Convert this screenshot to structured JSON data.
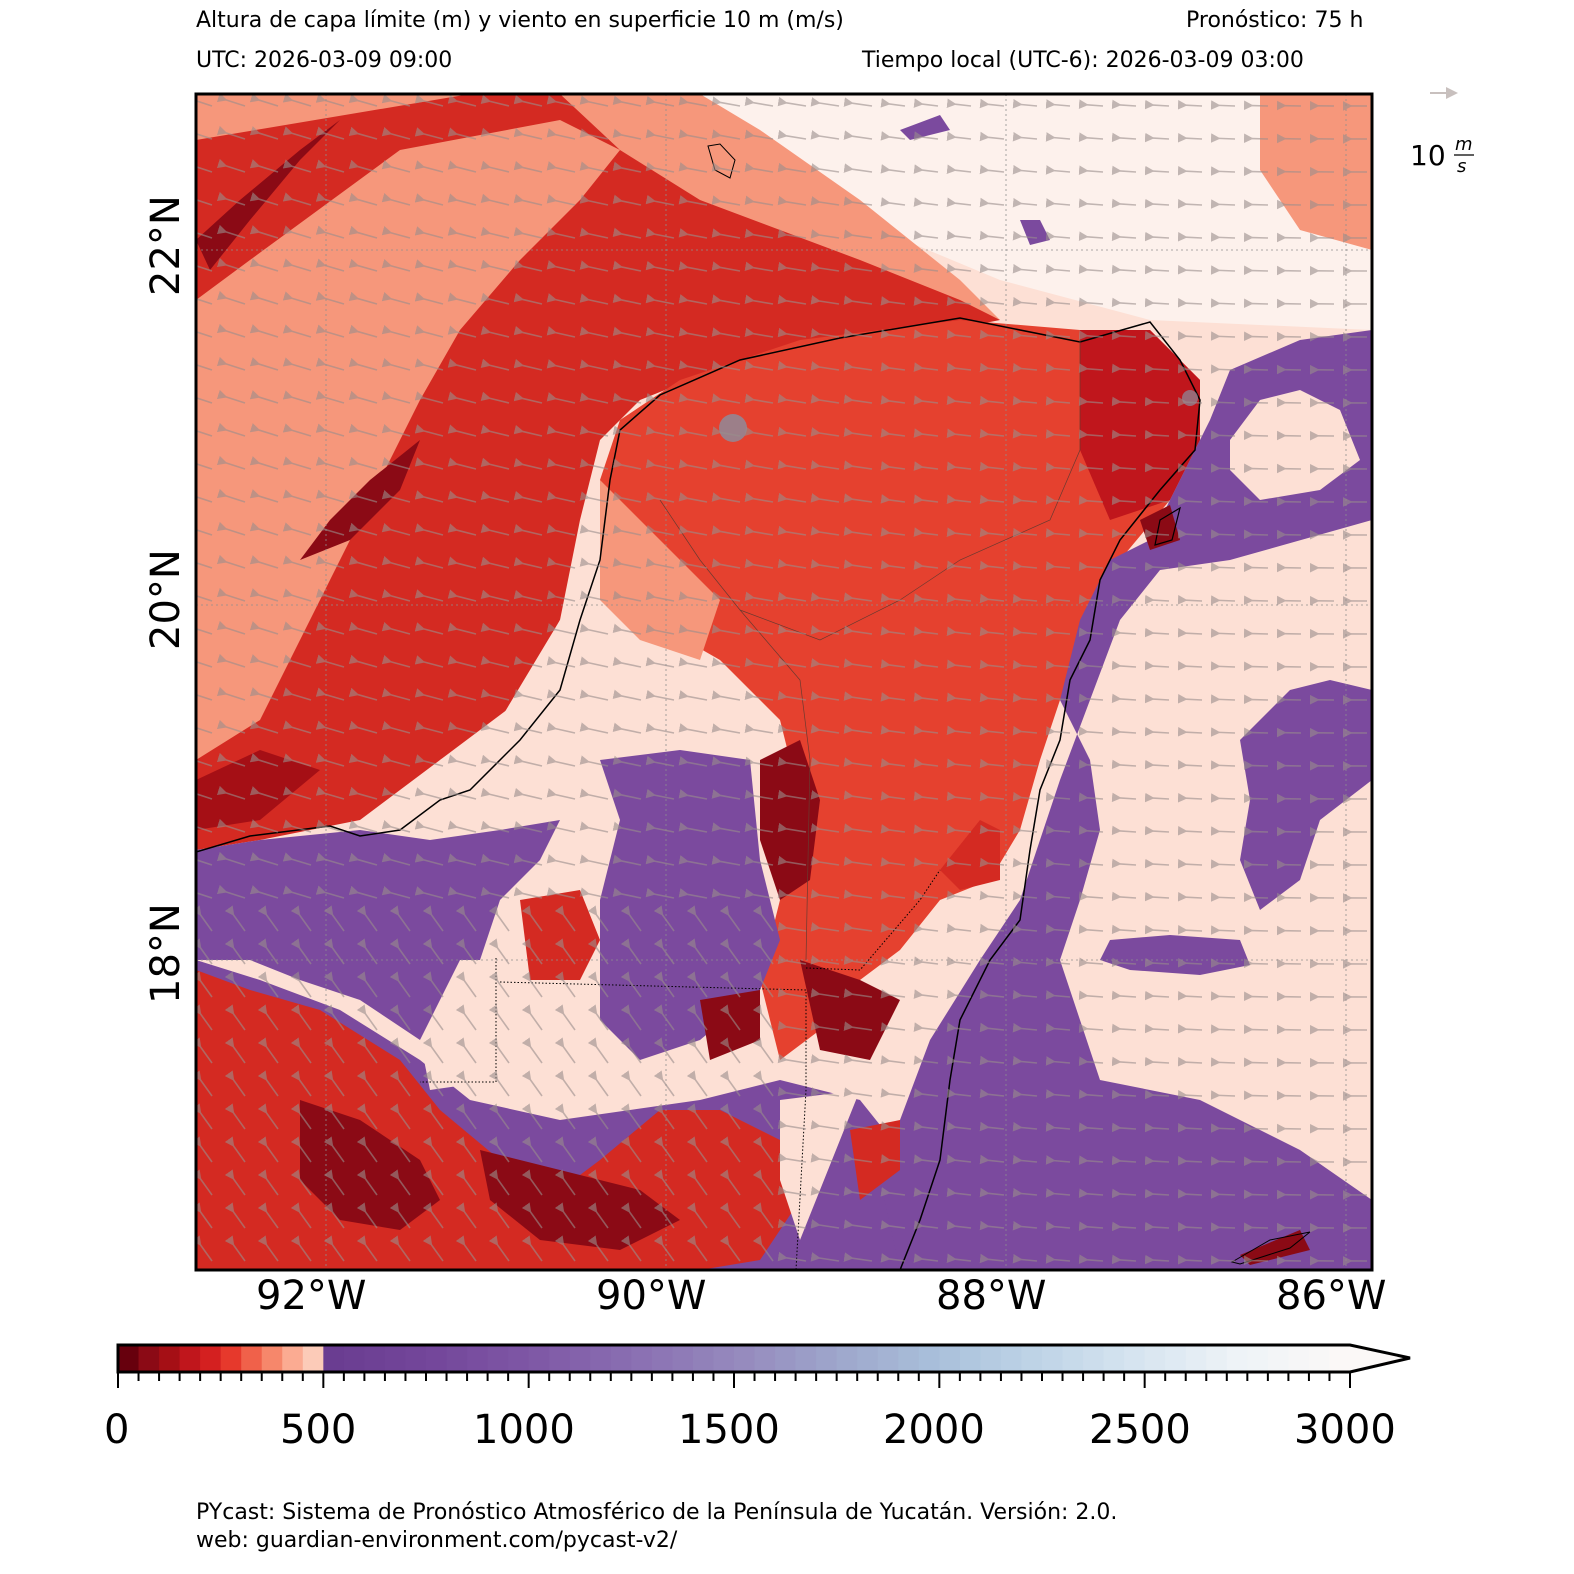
{
  "header": {
    "title": "Altura de capa límite (m) y viento en superficie 10 m (m/s)",
    "forecast": "Pronóstico: 75 h",
    "utc": "UTC:  2026-03-09 09:00",
    "local_time": "Tiempo local (UTC-6): 2026-03-09 03:00"
  },
  "map": {
    "lon_labels": [
      "92°W",
      "90°W",
      "88°W",
      "86°W"
    ],
    "lat_labels": [
      "22°N",
      "20°N",
      "18°N"
    ],
    "wind_key": {
      "value": "10",
      "unit_num": "m",
      "unit_den": "s"
    }
  },
  "colorbar": {
    "tick_labels": [
      "0",
      "500",
      "1000",
      "1500",
      "2000",
      "2500",
      "3000"
    ],
    "min": 0,
    "max": 3000,
    "extend": "max",
    "low_colors": [
      "#67000d",
      "#8b0a15",
      "#a50f15",
      "#c0161c",
      "#d42020",
      "#e6392c",
      "#f0614a",
      "#f6876b",
      "#fbab92",
      "#fccbb8",
      "#fee8df"
    ],
    "high_colors": [
      "#6a3d91",
      "#74479b",
      "#7f58a6",
      "#8a6fb2",
      "#9589bd",
      "#9ea6cb",
      "#a9c0db",
      "#bfd4e7",
      "#d7e5f0",
      "#eef3f7",
      "#fbf8f7"
    ]
  },
  "colors": {
    "sea_red": "#d42a22",
    "dark_red": "#8b0a15",
    "salmon": "#f6977b",
    "pink_pale": "#fde0d5",
    "purple": "#7b4a9e",
    "land_red": "#e5412f",
    "arrow": "#9a8e8c"
  },
  "footer": {
    "line1": "PYcast: Sistema de Pronóstico Atmosférico de la Península de Yucatán. Versión: 2.0.",
    "line2": "web: guardian-environment.com/pycast-v2/"
  }
}
